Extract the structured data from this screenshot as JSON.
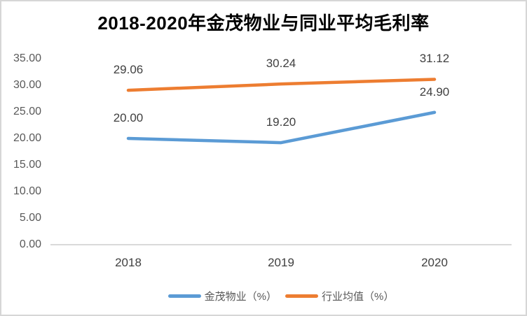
{
  "title": "2018-2020年金茂物业与同业平均毛利率",
  "chart_data": {
    "type": "line",
    "title": "2018-2020年金茂物业与同业平均毛利率",
    "categories": [
      "2018",
      "2019",
      "2020"
    ],
    "series": [
      {
        "name": "金茂物业（%）",
        "values": [
          20.0,
          19.2,
          24.9
        ],
        "labels": [
          "20.00",
          "19.20",
          "24.90"
        ],
        "color": "#5B9BD5"
      },
      {
        "name": "行业均值（%）",
        "values": [
          29.06,
          30.24,
          31.12
        ],
        "labels": [
          "29.06",
          "30.24",
          "31.12"
        ],
        "color": "#ED7D31"
      }
    ],
    "y_ticks": [
      "35.00",
      "30.00",
      "25.00",
      "20.00",
      "15.00",
      "10.00",
      "5.00",
      "0.00"
    ],
    "ylim": [
      0,
      35
    ],
    "xlabel": "",
    "ylabel": "",
    "grid": "baseline-only",
    "legend_position": "bottom",
    "data_labels_shown": true,
    "markers": false
  },
  "colors": {
    "series_blue": "#5B9BD5",
    "series_orange": "#ED7D31",
    "axis_line": "#d9d9d9",
    "axis_text": "#595959",
    "label_text": "#404040",
    "frame_border": "#d6d6d6",
    "title_text": "#000000"
  }
}
